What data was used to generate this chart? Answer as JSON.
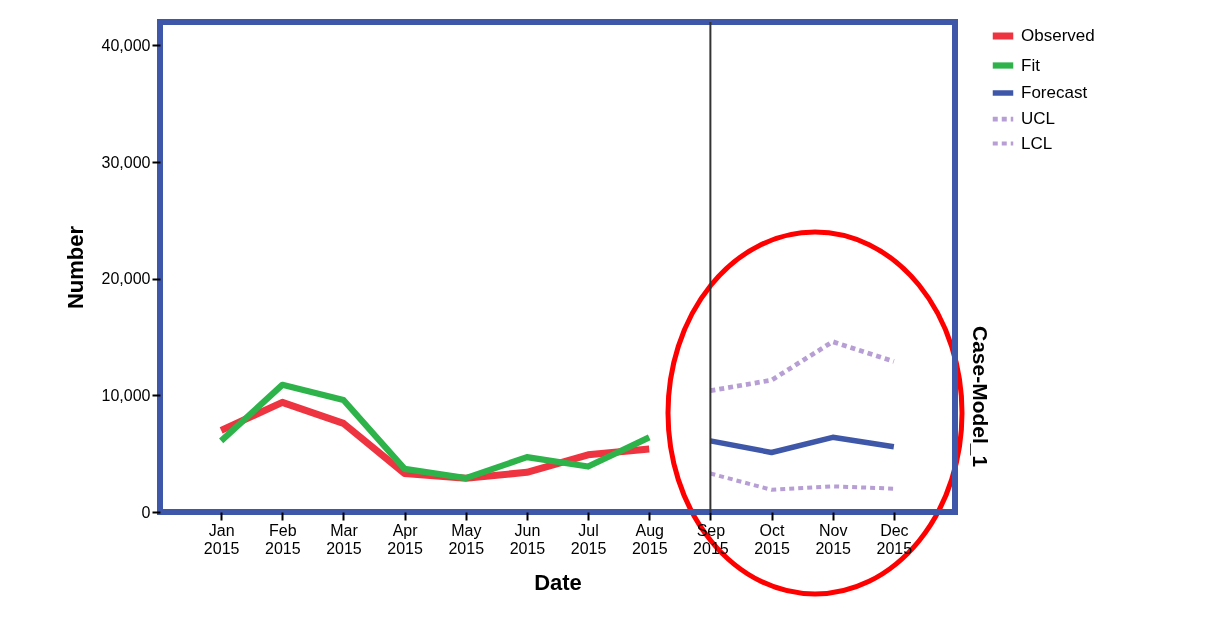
{
  "chart_data": {
    "type": "line",
    "xlabel": "Date",
    "ylabel": "Number",
    "categories": [
      "Jan 2015",
      "Feb 2015",
      "Mar 2015",
      "Apr 2015",
      "May 2015",
      "Jun 2015",
      "Jul 2015",
      "Aug 2015",
      "Sep 2015",
      "Oct 2015",
      "Nov 2015",
      "Dec 2015"
    ],
    "series": [
      {
        "name": "Observed",
        "color": "#ee3440",
        "line_style": "solid",
        "values": [
          7000,
          9400,
          7600,
          3300,
          2900,
          3400,
          4900,
          5400,
          null,
          null,
          null,
          null
        ]
      },
      {
        "name": "Fit",
        "color": "#2db34a",
        "line_style": "solid",
        "values": [
          6100,
          10900,
          9600,
          3700,
          2900,
          4700,
          3900,
          6400,
          null,
          null,
          null,
          null
        ]
      },
      {
        "name": "Forecast",
        "color": "#3f57a8",
        "line_style": "solid",
        "values": [
          null,
          null,
          null,
          null,
          null,
          null,
          null,
          null,
          6100,
          5100,
          6400,
          5600
        ]
      },
      {
        "name": "UCL",
        "color": "#b79ed4",
        "line_style": "dashed",
        "values": [
          null,
          null,
          null,
          null,
          null,
          null,
          null,
          null,
          10400,
          11300,
          14600,
          12900
        ]
      },
      {
        "name": "LCL",
        "color": "#b79ed4",
        "line_style": "dashed",
        "values": [
          null,
          null,
          null,
          null,
          null,
          null,
          null,
          null,
          3300,
          1900,
          2200,
          2000
        ]
      }
    ],
    "ylim": [
      0,
      42000
    ],
    "yticks": [
      0,
      {
        "value": 10000,
        "label": "10,000"
      },
      {
        "value": 20000,
        "label": "20,000"
      },
      {
        "value": 30000,
        "label": "30,000"
      },
      {
        "value": 40000,
        "label": "40,000"
      }
    ],
    "ref_lines": [
      {
        "axis": "x",
        "value": "Sep 2015",
        "color": "#333333"
      }
    ],
    "annotations": [
      "Case-Model_1"
    ],
    "grid": false,
    "marker": "none",
    "legend": "top right"
  }
}
